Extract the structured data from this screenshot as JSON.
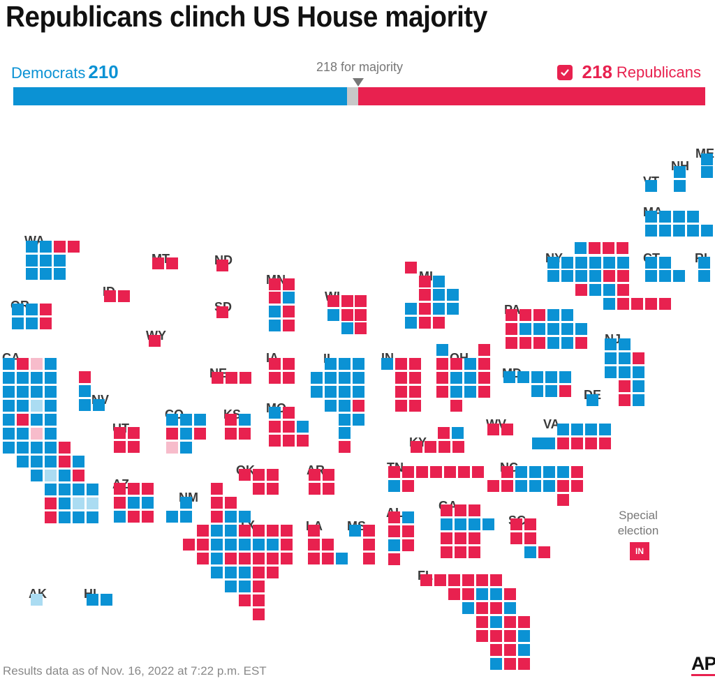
{
  "title": "Republicans clinch US House majority",
  "tally": {
    "dem_label": "Democrats",
    "dem_seats": "210",
    "rep_label": "Republicans",
    "rep_seats": "218",
    "majority_label": "218 for majority",
    "dem_total": 210,
    "uncalled_total": 7,
    "rep_total": 218,
    "house_total": 435
  },
  "colors": {
    "dem": "#0b92d4",
    "rep": "#e8214f",
    "dem_leading": "#abdcf2",
    "rep_leading": "#f7bccb",
    "uncalled": "#c8c8c8"
  },
  "legend": {
    "special_title": "Special election",
    "special_marker": "IN"
  },
  "footer": {
    "note": "Results data as of Nov. 16, 2022 at 7:22 p.m. EST",
    "credit": "AP"
  },
  "states": [
    {
      "abbr": "ME",
      "districts": "DD"
    },
    {
      "abbr": "NH",
      "districts": "DD"
    },
    {
      "abbr": "VT",
      "districts": "D"
    },
    {
      "abbr": "MA",
      "districts": "DDDDDDDDD"
    },
    {
      "abbr": "WA",
      "districts": "DDRRDDDDDD"
    },
    {
      "abbr": "MT",
      "districts": "RR"
    },
    {
      "abbr": "ND",
      "districts": "R"
    },
    {
      "abbr": "MN",
      "districts": "RRRDDRDR"
    },
    {
      "abbr": "MI",
      "districts": "RRDRDDDRDDDRR"
    },
    {
      "abbr": "NY",
      "districts": "DRRRDDDDDDDDDDRRRDDRDRRRR"
    },
    {
      "abbr": "CT",
      "districts": "DDDDD"
    },
    {
      "abbr": "RI",
      "districts": "DD"
    },
    {
      "abbr": "ID",
      "districts": "RR"
    },
    {
      "abbr": "SD",
      "districts": "R"
    },
    {
      "abbr": "WI",
      "districts": "RRRDRRDR"
    },
    {
      "abbr": "OR",
      "districts": "DDRDDR"
    },
    {
      "abbr": "PA",
      "districts": "RRRDDRDDDDDRRRDDR"
    },
    {
      "abbr": "WY",
      "districts": "R"
    },
    {
      "abbr": "NJ",
      "districts": "DDDDRDDDRDRD"
    },
    {
      "abbr": "CA",
      "districts": "DRrDDDDDDDDDDDbDDRDDDDrDDDDDRDDDRDDbDRDDDDRDbbRDDDR"
    },
    {
      "abbr": "NE",
      "districts": "RRR"
    },
    {
      "abbr": "IA",
      "districts": "RRRR"
    },
    {
      "abbr": "IL",
      "districts": "DDDDDDDDDDDDDRDDDR"
    },
    {
      "abbr": "IN",
      "districts": "DRRRRRRRR"
    },
    {
      "abbr": "OH",
      "districts": "DRRRDRRDDRRDDRR"
    },
    {
      "abbr": "MD",
      "districts": "DDDDDDDR"
    },
    {
      "abbr": "NV",
      "districts": "RDDD"
    },
    {
      "abbr": "DE",
      "districts": "D"
    },
    {
      "abbr": "UT",
      "districts": "RRRR"
    },
    {
      "abbr": "CO",
      "districts": "DDDRDRDr"
    },
    {
      "abbr": "KS",
      "districts": "RDRR"
    },
    {
      "abbr": "MO",
      "districts": "DRRRDRRR"
    },
    {
      "abbr": "WV",
      "districts": "RR"
    },
    {
      "abbr": "VA",
      "districts": "DDDDDRRRRDD"
    },
    {
      "abbr": "KY",
      "districts": "RDRRRR"
    },
    {
      "abbr": "OK",
      "districts": "RRRRR"
    },
    {
      "abbr": "AR",
      "districts": "RRRR"
    },
    {
      "abbr": "TN",
      "districts": "RRRRRRRRD"
    },
    {
      "abbr": "NC",
      "districts": "RDDDDRRRDDDRRR"
    },
    {
      "abbr": "AZ",
      "districts": "RRRRDDDRR"
    },
    {
      "abbr": "NM",
      "districts": "DDD"
    },
    {
      "abbr": "TX",
      "districts": "RRRDRRRRRRDDDDDRRDRRRRRDDDRRDDRRRRRDDDR"
    },
    {
      "abbr": "LA",
      "districts": "RRRRRD"
    },
    {
      "abbr": "MS",
      "districts": "DRRR"
    },
    {
      "abbr": "AL",
      "districts": "RDRRDRR"
    },
    {
      "abbr": "GA",
      "districts": "RRRDDDDRRRRRR"
    },
    {
      "abbr": "SC",
      "districts": "RRRRDR"
    },
    {
      "abbr": "FL",
      "districts": "RRRRRRRRDDRDDRDRDRRRRRDRRDDRRR"
    },
    {
      "abbr": "AK",
      "districts": "b"
    },
    {
      "abbr": "HI",
      "districts": "DD"
    }
  ]
}
